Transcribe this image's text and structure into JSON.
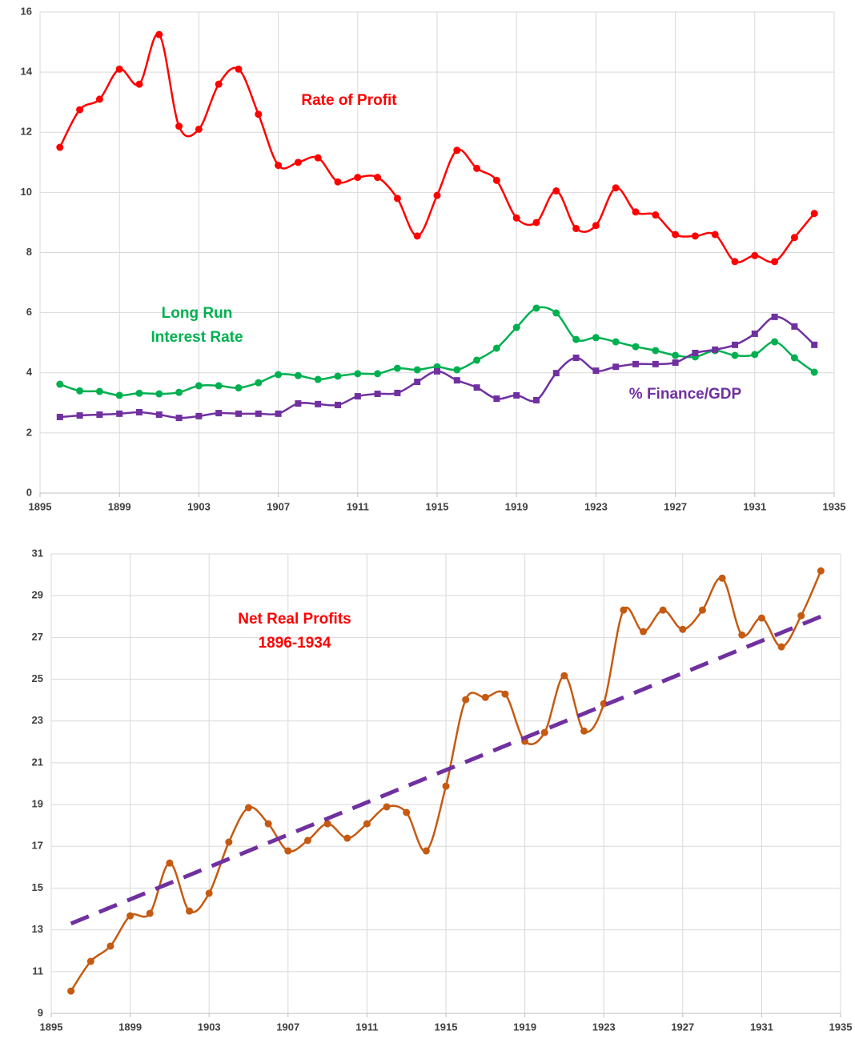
{
  "chart_data": [
    {
      "type": "line",
      "x": [
        1896,
        1897,
        1898,
        1899,
        1900,
        1901,
        1902,
        1903,
        1904,
        1905,
        1906,
        1907,
        1908,
        1909,
        1910,
        1911,
        1912,
        1913,
        1914,
        1915,
        1916,
        1917,
        1918,
        1919,
        1920,
        1921,
        1922,
        1923,
        1924,
        1925,
        1926,
        1927,
        1928,
        1929,
        1930,
        1931,
        1932,
        1933,
        1934
      ],
      "series": [
        {
          "name": "Rate of Profit",
          "color": "#ff0000",
          "marker": "circle",
          "values": [
            11.5,
            12.75,
            13.1,
            14.1,
            13.6,
            15.25,
            12.2,
            12.1,
            13.6,
            14.1,
            12.6,
            10.9,
            11.0,
            11.15,
            10.35,
            10.5,
            10.5,
            9.8,
            8.55,
            9.9,
            11.4,
            10.8,
            10.4,
            9.15,
            9.0,
            10.05,
            8.8,
            8.9,
            10.15,
            9.35,
            9.25,
            8.6,
            8.55,
            8.6,
            7.7,
            7.9,
            7.7,
            8.5,
            9.3
          ]
        },
        {
          "name": "Long Run\nInterest Rate",
          "color": "#00b050",
          "marker": "circle",
          "values": [
            3.62,
            3.4,
            3.38,
            3.25,
            3.32,
            3.3,
            3.35,
            3.57,
            3.57,
            3.5,
            3.67,
            3.94,
            3.91,
            3.78,
            3.89,
            3.97,
            3.97,
            4.15,
            4.1,
            4.2,
            4.1,
            4.42,
            4.82,
            5.51,
            6.15,
            5.99,
            5.11,
            5.17,
            5.03,
            4.87,
            4.74,
            4.58,
            4.53,
            4.74,
            4.58,
            4.61,
            5.03,
            4.5,
            4.02
          ]
        },
        {
          "name": "% Finance/GDP",
          "color": "#7030a0",
          "marker": "square",
          "values": [
            2.53,
            2.58,
            2.61,
            2.64,
            2.69,
            2.61,
            2.5,
            2.56,
            2.66,
            2.64,
            2.64,
            2.64,
            2.98,
            2.96,
            2.93,
            3.22,
            3.3,
            3.33,
            3.7,
            4.05,
            3.75,
            3.51,
            3.14,
            3.25,
            3.09,
            3.99,
            4.5,
            4.07,
            4.2,
            4.29,
            4.29,
            4.34,
            4.66,
            4.77,
            4.93,
            5.3,
            5.86,
            5.54,
            4.93
          ]
        }
      ],
      "xlim": [
        1895,
        1935
      ],
      "xticks": [
        1895,
        1899,
        1903,
        1907,
        1911,
        1915,
        1919,
        1923,
        1927,
        1931,
        1935
      ],
      "ylim": [
        0,
        16
      ],
      "yticks": [
        0,
        2,
        4,
        6,
        8,
        10,
        12,
        14,
        16
      ],
      "grid": true,
      "smooth": true
    },
    {
      "type": "line",
      "title": "Net Real Profits\n1896-1934",
      "x": [
        1896,
        1897,
        1898,
        1899,
        1900,
        1901,
        1902,
        1903,
        1904,
        1905,
        1906,
        1907,
        1908,
        1909,
        1910,
        1911,
        1912,
        1913,
        1914,
        1915,
        1916,
        1917,
        1918,
        1919,
        1920,
        1921,
        1922,
        1923,
        1924,
        1925,
        1926,
        1927,
        1928,
        1929,
        1930,
        1931,
        1932,
        1933,
        1934
      ],
      "series": [
        {
          "color": "#c55a11",
          "marker": "circle",
          "values": [
            10.07,
            11.49,
            12.22,
            13.67,
            13.79,
            16.2,
            13.9,
            14.75,
            17.2,
            18.85,
            18.08,
            16.78,
            17.28,
            18.08,
            17.39,
            18.08,
            18.89,
            18.62,
            16.78,
            19.88,
            24.02,
            24.13,
            24.29,
            22.03,
            22.45,
            25.17,
            22.52,
            23.83,
            28.31,
            27.28,
            28.31,
            27.39,
            28.31,
            29.84,
            27.12,
            27.93,
            26.55,
            28.04,
            30.19
          ]
        },
        {
          "color": "#7030a0",
          "dashed": true,
          "x": [
            1896,
            1934
          ],
          "values": [
            13.3,
            28.0
          ]
        }
      ],
      "xlim": [
        1895,
        1935
      ],
      "xticks": [
        1895,
        1899,
        1903,
        1907,
        1911,
        1915,
        1919,
        1923,
        1927,
        1931,
        1935
      ],
      "ylim": [
        9,
        31
      ],
      "yticks": [
        9,
        11,
        13,
        15,
        17,
        19,
        21,
        23,
        25,
        27,
        29,
        31
      ],
      "grid": true,
      "smooth": true
    }
  ]
}
